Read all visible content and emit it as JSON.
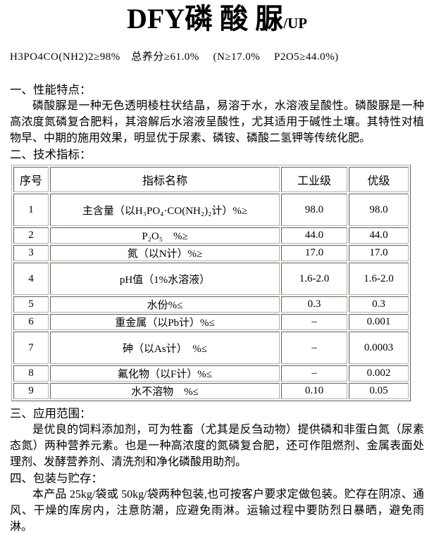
{
  "colors": {
    "background": "#ffffff",
    "text": "#000000",
    "table_border": "#b5b1a2"
  },
  "title": {
    "main": "DFY磷 酸 脲",
    "suffix": "/UP"
  },
  "specs_line": "H3PO4CO(NH2)2≥98%　总养分≥61.0%　 (N≥17.0%　 P2O5≥44.0%)",
  "sections": [
    {
      "heading": "一、性能特点：",
      "paragraph": "磷酸脲是一种无色透明棱柱状结晶，易溶于水，水溶液呈酸性。磷酸脲是一种高浓度氮磷复合肥料，其溶解后水溶液呈酸性，尤其适用于碱性土壤。其特性对植物早、中期的施用效果，明显优于尿素、磷铵、磷酸二氢钾等传统化肥。"
    },
    {
      "heading": "二、技术指标："
    },
    {
      "heading": "三、应用范围：",
      "paragraph": "是优良的饲料添加剂，可为牲畜（尤其是反刍动物）提供磷和非蛋白氮（尿素态氮）两种营养元素。也是一种高浓度的氮磷复合肥，还可作阻燃剂、金属表面处理剂、发酵营养剂、清洗剂和净化磷酸用助剂。"
    },
    {
      "heading": "四、包装与贮存：",
      "paragraph": "本产品 25kg/袋或 50kg/袋两种包装,也可按客户要求定做包装。贮存在阴凉、通风、干燥的库房内，注意防潮，应避免雨淋。运输过程中要防烈日暴晒，避免雨淋。"
    }
  ],
  "table": {
    "headers": [
      "序号",
      "指标名称",
      "工业级",
      "优级"
    ],
    "rows": [
      {
        "no": "1",
        "name": "主含量（以H₃PO₄·CO(NH₂)₂计）%≥",
        "industrial": "98.0",
        "premium": "98.0"
      },
      {
        "no": "2",
        "name": "P₂O₅　%≥",
        "industrial": "44.0",
        "premium": "44.0"
      },
      {
        "no": "3",
        "name": "氮（以N计）%≥",
        "industrial": "17.0",
        "premium": "17.0"
      },
      {
        "no": "4",
        "name": "pH值（1%水溶液）",
        "industrial": "1.6-2.0",
        "premium": "1.6-2.0"
      },
      {
        "no": "5",
        "name": "水份%≤",
        "industrial": "0.3",
        "premium": "0.3"
      },
      {
        "no": "6",
        "name": "重金属（以Pb计）%≤",
        "industrial": "–",
        "premium": "0.001"
      },
      {
        "no": "7",
        "name": "砷（以As计）　%≤",
        "industrial": "–",
        "premium": "0.0003"
      },
      {
        "no": "8",
        "name": "氟化物（以F计）%≤",
        "industrial": "–",
        "premium": "0.002"
      },
      {
        "no": "9",
        "name": "水不溶物　%≤",
        "industrial": "0.10",
        "premium": "0.05"
      }
    ]
  }
}
